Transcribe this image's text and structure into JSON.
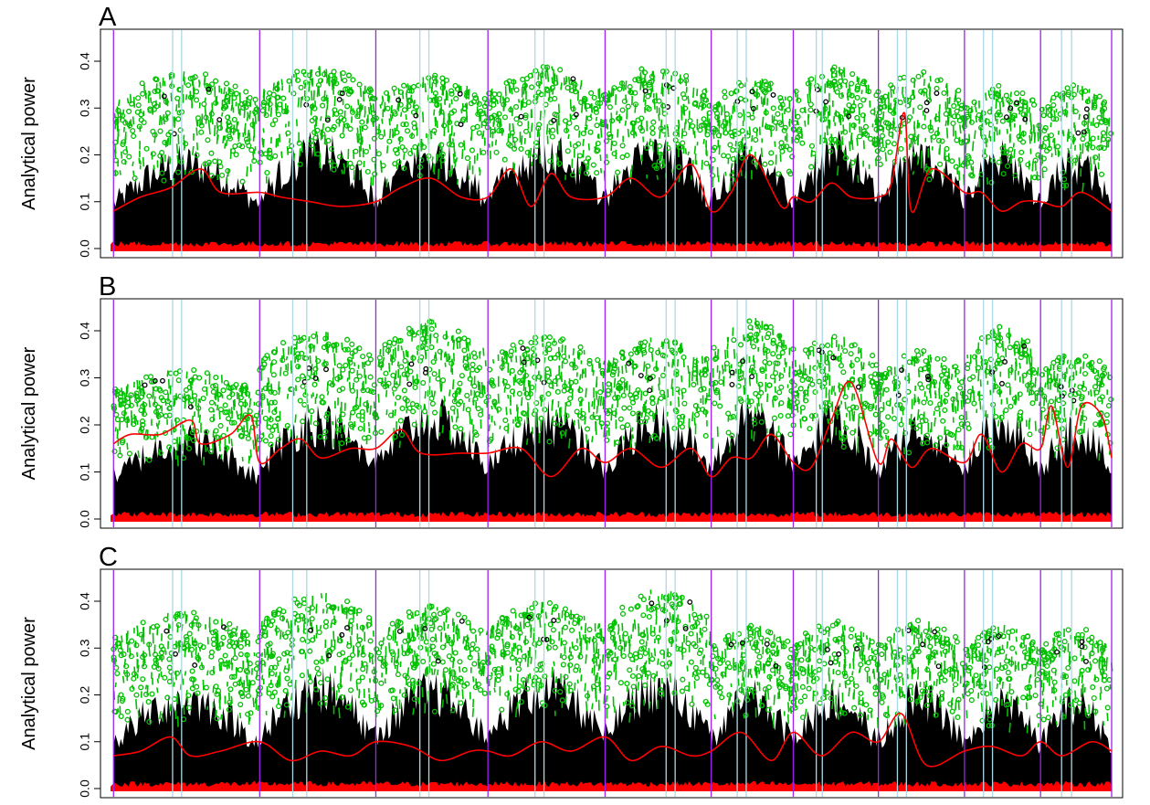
{
  "figure": {
    "panels_count": 3
  },
  "colors": {
    "background": "#ffffff",
    "frame": "#000000",
    "significant_points": "#00c000",
    "background_points": "#000000",
    "null_points": "#ff0000",
    "smooth_line": "#ff0000",
    "chromosome_boundary": "#a020f0",
    "chromosome_arm_marker": "#add8e6"
  },
  "chart_data": [
    {
      "type": "scatter",
      "panel_label": "A",
      "ylabel": "Analytical power",
      "ylim": [
        0.0,
        0.45
      ],
      "yticks": [
        "0.0",
        "0.1",
        "0.2",
        "0.3",
        "0.4"
      ],
      "xlim": [
        0,
        100
      ],
      "grid": false,
      "legend": "none",
      "boundaries_purple": [
        0.3,
        14.9,
        26.5,
        37.7,
        49.4,
        60.0,
        68.2,
        76.7,
        85.3,
        92.9,
        100.0
      ],
      "boundaries_lightblue": [
        6.2,
        7.1,
        18.2,
        19.6,
        30.9,
        31.8,
        42.4,
        43.3,
        55.5,
        56.4,
        62.6,
        63.5,
        70.5,
        71.1,
        78.6,
        79.5,
        87.2,
        88.1,
        95.0,
        96.0
      ],
      "segment_peaks": [
        0.38,
        0.39,
        0.37,
        0.39,
        0.39,
        0.37,
        0.39,
        0.38,
        0.35,
        0.35,
        0.36
      ],
      "segment_means": [
        0.24,
        0.27,
        0.26,
        0.27,
        0.27,
        0.25,
        0.27,
        0.26,
        0.25,
        0.24,
        0.24
      ],
      "series": [
        {
          "name": "",
          "type": "line",
          "x": [
            0.3,
            3,
            6,
            9,
            11,
            14.9,
            17,
            20,
            23,
            26.5,
            29,
            32,
            35,
            37.7,
            40,
            42,
            44,
            46,
            49.4,
            52,
            55,
            58,
            60,
            62,
            64,
            67,
            68.2,
            70,
            72,
            74,
            76.7,
            78,
            79.3,
            80,
            82,
            85.3,
            87,
            89,
            91,
            92.9,
            95,
            97,
            100
          ],
          "y": [
            0.08,
            0.11,
            0.13,
            0.17,
            0.12,
            0.12,
            0.11,
            0.1,
            0.09,
            0.1,
            0.13,
            0.15,
            0.11,
            0.11,
            0.17,
            0.09,
            0.16,
            0.11,
            0.11,
            0.15,
            0.11,
            0.18,
            0.08,
            0.12,
            0.2,
            0.09,
            0.11,
            0.1,
            0.14,
            0.11,
            0.11,
            0.14,
            0.29,
            0.08,
            0.17,
            0.12,
            0.12,
            0.08,
            0.1,
            0.1,
            0.09,
            0.12,
            0.08
          ]
        }
      ]
    },
    {
      "type": "scatter",
      "panel_label": "B",
      "ylabel": "Analytical power",
      "ylim": [
        0.0,
        0.45
      ],
      "yticks": [
        "0.0",
        "0.1",
        "0.2",
        "0.3",
        "0.4"
      ],
      "xlim": [
        0,
        100
      ],
      "grid": false,
      "legend": "none",
      "boundaries_purple": [
        0.3,
        14.9,
        26.5,
        37.7,
        49.4,
        60.0,
        68.2,
        76.7,
        85.3,
        92.9,
        100.0
      ],
      "boundaries_lightblue": [
        6.2,
        7.1,
        18.2,
        19.6,
        30.9,
        31.8,
        42.4,
        43.3,
        55.5,
        56.4,
        62.6,
        63.5,
        70.5,
        71.1,
        78.6,
        79.5,
        87.2,
        88.1,
        95.0,
        96.0
      ],
      "segment_peaks": [
        0.32,
        0.4,
        0.42,
        0.39,
        0.39,
        0.43,
        0.39,
        0.36,
        0.41,
        0.36,
        0.28
      ],
      "segment_means": [
        0.22,
        0.27,
        0.28,
        0.27,
        0.27,
        0.28,
        0.27,
        0.25,
        0.27,
        0.25,
        0.2
      ],
      "series": [
        {
          "name": "",
          "type": "line",
          "x": [
            0.3,
            2,
            5,
            8,
            9,
            12,
            14,
            14.9,
            17,
            19,
            21,
            24,
            26.5,
            29,
            31,
            35,
            37.7,
            41,
            44,
            47,
            49.4,
            52,
            55,
            58,
            60,
            62,
            64,
            66,
            68.2,
            70,
            72,
            74,
            76.7,
            78,
            80,
            82,
            85.3,
            87,
            89,
            91,
            92.9,
            94,
            95.6,
            97,
            99,
            100
          ],
          "y": [
            0.16,
            0.18,
            0.18,
            0.21,
            0.16,
            0.18,
            0.22,
            0.12,
            0.15,
            0.17,
            0.13,
            0.15,
            0.15,
            0.19,
            0.14,
            0.14,
            0.14,
            0.15,
            0.09,
            0.15,
            0.12,
            0.15,
            0.11,
            0.15,
            0.09,
            0.13,
            0.13,
            0.18,
            0.12,
            0.11,
            0.21,
            0.29,
            0.12,
            0.17,
            0.11,
            0.15,
            0.12,
            0.18,
            0.1,
            0.16,
            0.15,
            0.24,
            0.11,
            0.24,
            0.22,
            0.13
          ]
        }
      ]
    },
    {
      "type": "scatter",
      "panel_label": "C",
      "ylabel": "Analytical power",
      "ylim": [
        0.0,
        0.45
      ],
      "yticks": [
        "0.0",
        "0.1",
        "0.2",
        "0.3",
        "0.4"
      ],
      "xlim": [
        0,
        100
      ],
      "grid": false,
      "legend": "none",
      "boundaries_purple": [
        0.3,
        14.9,
        26.5,
        37.7,
        49.4,
        60.0,
        68.2,
        76.7,
        85.3,
        92.9,
        100.0
      ],
      "boundaries_lightblue": [
        6.2,
        7.1,
        18.2,
        19.6,
        30.9,
        31.8,
        42.4,
        43.3,
        55.5,
        56.4,
        62.6,
        63.5,
        70.5,
        71.1,
        78.6,
        79.5,
        87.2,
        88.1,
        95.0,
        96.0
      ],
      "segment_peaks": [
        0.38,
        0.42,
        0.39,
        0.4,
        0.43,
        0.35,
        0.36,
        0.36,
        0.35,
        0.35,
        0.38
      ],
      "segment_means": [
        0.25,
        0.28,
        0.27,
        0.28,
        0.28,
        0.25,
        0.25,
        0.25,
        0.24,
        0.24,
        0.26
      ],
      "series": [
        {
          "name": "",
          "type": "line",
          "x": [
            0.3,
            3,
            6,
            8,
            11,
            14.9,
            18,
            21,
            24,
            26.5,
            30,
            33,
            36,
            37.7,
            40,
            43,
            46,
            49.4,
            52,
            55,
            58,
            60,
            63,
            66,
            68.2,
            71,
            74,
            76.7,
            79,
            81.5,
            85.3,
            88,
            91,
            92.9,
            95,
            98,
            100
          ],
          "y": [
            0.07,
            0.08,
            0.11,
            0.07,
            0.08,
            0.1,
            0.06,
            0.08,
            0.07,
            0.1,
            0.09,
            0.06,
            0.08,
            0.08,
            0.07,
            0.1,
            0.08,
            0.11,
            0.06,
            0.09,
            0.07,
            0.08,
            0.12,
            0.06,
            0.12,
            0.07,
            0.12,
            0.1,
            0.16,
            0.05,
            0.08,
            0.09,
            0.07,
            0.1,
            0.07,
            0.1,
            0.08
          ]
        }
      ]
    }
  ]
}
